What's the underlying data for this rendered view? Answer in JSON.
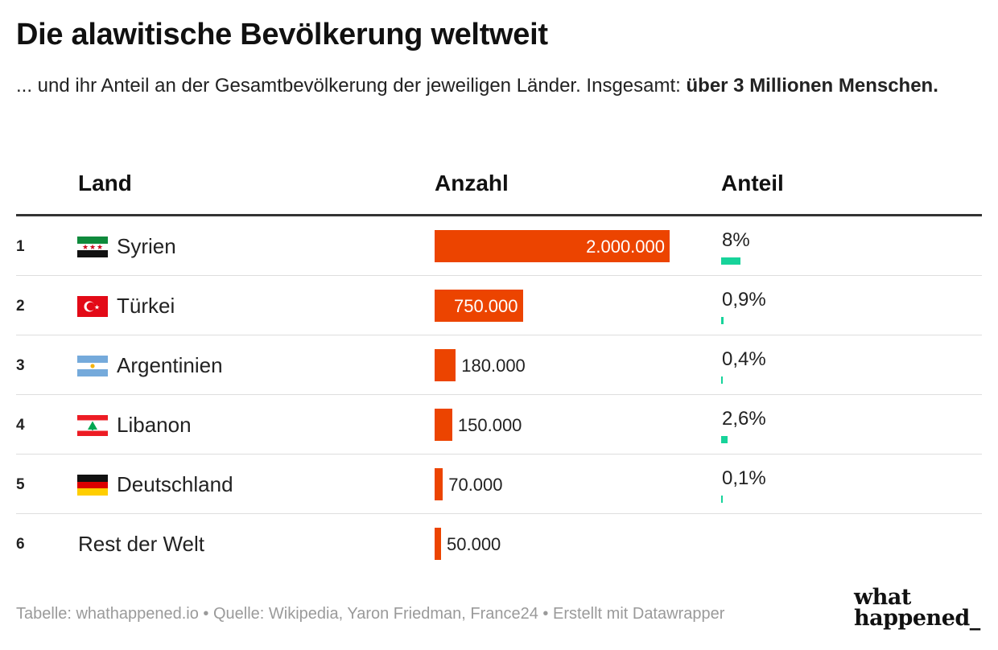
{
  "title": "Die alawitische Bevölkerung weltweit",
  "subtitle_text": "... und ihr Anteil an der Gesamtbevölkerung der jeweiligen Länder. Insgesamt: ",
  "subtitle_bold": "über 3 Millionen Menschen.",
  "columns": {
    "land": "Land",
    "anzahl": "Anzahl",
    "anteil": "Anteil"
  },
  "chart_data": {
    "type": "table",
    "columns": [
      "Land",
      "Anzahl",
      "Anteil"
    ],
    "rows": [
      {
        "rank": "1",
        "country": "Syrien",
        "flag": "syria-flag-icon",
        "count": 2000000,
        "count_label": "2.000.000",
        "share": 8,
        "share_label": "8%"
      },
      {
        "rank": "2",
        "country": "Türkei",
        "flag": "turkey-flag-icon",
        "count": 750000,
        "count_label": "750.000",
        "share": 0.9,
        "share_label": "0,9%"
      },
      {
        "rank": "3",
        "country": "Argentinien",
        "flag": "argentina-flag-icon",
        "count": 180000,
        "count_label": "180.000",
        "share": 0.4,
        "share_label": "0,4%"
      },
      {
        "rank": "4",
        "country": "Libanon",
        "flag": "lebanon-flag-icon",
        "count": 150000,
        "count_label": "150.000",
        "share": 2.6,
        "share_label": "2,6%"
      },
      {
        "rank": "5",
        "country": "Deutschland",
        "flag": "germany-flag-icon",
        "count": 70000,
        "count_label": "70.000",
        "share": 0.1,
        "share_label": "0,1%"
      },
      {
        "rank": "6",
        "country": "Rest der Welt",
        "flag": null,
        "count": 50000,
        "count_label": "50.000",
        "share": null,
        "share_label": ""
      }
    ],
    "count_max": 2000000,
    "share_max": 100
  },
  "colors": {
    "count_bar": "#ec4400",
    "share_bar": "#17d39a"
  },
  "footer": "Tabelle: whathappened.io  • Quelle: Wikipedia, Yaron Friedman, France24 • Erstellt mit Datawrapper",
  "logo": {
    "line1": "what",
    "line2": "happened_"
  }
}
